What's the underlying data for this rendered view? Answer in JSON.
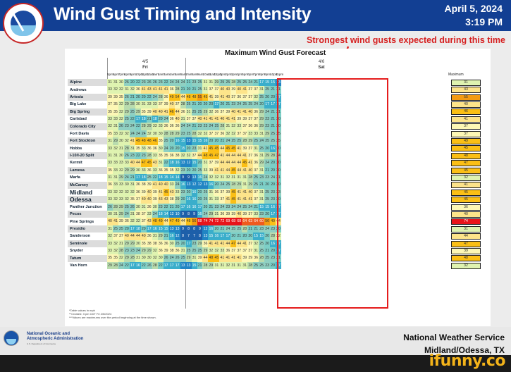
{
  "header": {
    "title": "Wind Gust Timing and Intensity",
    "date": "April 5, 2024",
    "time": "3:19 PM",
    "logo_text": "NATIONAL WEATHER SERVICE"
  },
  "annotation": {
    "text": "Strongest wind gusts expected during this time",
    "color": "#d61f1f"
  },
  "table": {
    "title": "Maximum Wind Gust Forecast",
    "day1": {
      "date": "4/5",
      "day": "Fri"
    },
    "day2": {
      "date": "4/6",
      "day": "Sat"
    },
    "max_header": "Maximum",
    "hours": [
      "5pm",
      "6pm",
      "7pm",
      "8pm",
      "9pm",
      "10pm",
      "11pm",
      "12am",
      "1am",
      "2am",
      "3am",
      "4am",
      "5am",
      "6am",
      "7am",
      "8am",
      "9am",
      "10am",
      "11am",
      "12pm",
      "1pm",
      "2pm",
      "3pm",
      "4pm",
      "5pm",
      "6pm",
      "7pm",
      "8pm",
      "9pm",
      "10pm",
      "11pm"
    ],
    "highlight_hours": [
      "9am",
      "6pm"
    ],
    "rows": [
      {
        "name": "Alpine",
        "values": [
          31,
          31,
          30,
          26,
          20,
          22,
          23,
          26,
          26,
          23,
          22,
          24,
          24,
          24,
          21,
          23,
          25,
          31,
          31,
          29,
          25,
          25,
          28,
          25,
          25,
          24,
          21,
          17,
          15,
          15,
          13
        ],
        "max": 31
      },
      {
        "name": "Andrews",
        "values": [
          33,
          32,
          32,
          31,
          32,
          36,
          41,
          43,
          41,
          41,
          41,
          36,
          28,
          21,
          20,
          21,
          25,
          31,
          37,
          37,
          40,
          40,
          39,
          40,
          41,
          37,
          37,
          31,
          25,
          21,
          21
        ],
        "max": 43
      },
      {
        "name": "Artesia",
        "values": [
          39,
          39,
          35,
          26,
          21,
          20,
          20,
          22,
          24,
          28,
          36,
          49,
          54,
          44,
          48,
          48,
          55,
          45,
          41,
          39,
          41,
          40,
          37,
          36,
          37,
          37,
          32,
          25,
          20,
          20,
          17
        ],
        "max": 55
      },
      {
        "name": "Big Lake",
        "values": [
          37,
          35,
          32,
          29,
          28,
          30,
          31,
          33,
          33,
          37,
          39,
          40,
          37,
          28,
          25,
          21,
          20,
          20,
          20,
          17,
          20,
          21,
          23,
          24,
          25,
          25,
          24,
          20,
          17,
          17,
          17
        ],
        "max": 40
      },
      {
        "name": "Big Spring",
        "values": [
          35,
          35,
          32,
          29,
          25,
          29,
          35,
          39,
          40,
          40,
          41,
          46,
          44,
          36,
          31,
          25,
          25,
          29,
          32,
          36,
          37,
          39,
          40,
          41,
          41,
          40,
          36,
          29,
          24,
          21,
          21
        ],
        "max": 46
      },
      {
        "name": "Carlsbad",
        "values": [
          33,
          33,
          32,
          25,
          22,
          17,
          18,
          21,
          18,
          20,
          24,
          36,
          40,
          31,
          37,
          37,
          40,
          41,
          41,
          41,
          40,
          41,
          41,
          39,
          39,
          37,
          37,
          29,
          23,
          21,
          20
        ],
        "max": 41
      },
      {
        "name": "Colorado City",
        "values": [
          32,
          31,
          26,
          23,
          24,
          22,
          28,
          29,
          33,
          33,
          36,
          36,
          36,
          24,
          24,
          21,
          23,
          23,
          24,
          25,
          28,
          31,
          32,
          33,
          37,
          36,
          36,
          29,
          23,
          21,
          20
        ],
        "max": 37
      },
      {
        "name": "Fort Davis",
        "values": [
          35,
          33,
          32,
          32,
          24,
          24,
          24,
          32,
          30,
          30,
          28,
          28,
          29,
          23,
          25,
          28,
          32,
          32,
          37,
          37,
          36,
          32,
          32,
          37,
          37,
          33,
          33,
          31,
          29,
          25,
          25
        ],
        "max": 37
      },
      {
        "name": "Fort Stockton",
        "values": [
          31,
          29,
          30,
          32,
          41,
          49,
          48,
          48,
          46,
          35,
          25,
          20,
          16,
          15,
          13,
          15,
          15,
          16,
          20,
          20,
          21,
          24,
          25,
          25,
          28,
          29,
          25,
          24,
          25,
          25,
          25
        ],
        "max": 49
      },
      {
        "name": "Hobbs",
        "values": [
          33,
          32,
          31,
          28,
          31,
          35,
          33,
          36,
          36,
          30,
          24,
          20,
          20,
          15,
          20,
          23,
          31,
          41,
          45,
          45,
          44,
          45,
          45,
          41,
          39,
          37,
          31,
          25,
          20,
          16,
          20
        ],
        "max": 45
      },
      {
        "name": "I-10/I-20 Split",
        "values": [
          31,
          31,
          30,
          26,
          23,
          22,
          23,
          28,
          33,
          35,
          35,
          36,
          38,
          32,
          32,
          37,
          44,
          48,
          45,
          47,
          41,
          44,
          44,
          44,
          41,
          37,
          36,
          31,
          29,
          28,
          24
        ],
        "max": 48
      },
      {
        "name": "Kermit",
        "values": [
          33,
          33,
          33,
          33,
          40,
          44,
          47,
          45,
          43,
          31,
          22,
          18,
          16,
          13,
          12,
          15,
          20,
          31,
          37,
          39,
          44,
          44,
          44,
          44,
          45,
          41,
          36,
          29,
          24,
          20,
          20
        ],
        "max": 47
      },
      {
        "name": "Lamesa",
        "values": [
          35,
          33,
          32,
          29,
          29,
          30,
          33,
          36,
          33,
          36,
          35,
          35,
          32,
          23,
          20,
          20,
          25,
          33,
          39,
          41,
          41,
          44,
          45,
          44,
          41,
          40,
          37,
          31,
          21,
          20,
          20
        ],
        "max": 45
      },
      {
        "name": "Marfa",
        "values": [
          31,
          31,
          29,
          24,
          21,
          17,
          18,
          25,
          22,
          18,
          15,
          14,
          14,
          9,
          9,
          13,
          16,
          24,
          32,
          32,
          31,
          32,
          31,
          31,
          31,
          28,
          25,
          23,
          23,
          24,
          21
        ],
        "max": 32
      },
      {
        "name": "McCamey",
        "values": [
          36,
          33,
          33,
          30,
          31,
          36,
          38,
          39,
          41,
          40,
          40,
          33,
          24,
          16,
          13,
          12,
          12,
          13,
          16,
          20,
          24,
          25,
          28,
          29,
          31,
          29,
          25,
          21,
          20,
          20,
          20
        ],
        "max": 41
      },
      {
        "name": "Midland",
        "values": [
          33,
          32,
          32,
          32,
          32,
          36,
          39,
          40,
          39,
          41,
          45,
          43,
          33,
          23,
          20,
          16,
          20,
          25,
          31,
          36,
          37,
          39,
          45,
          41,
          41,
          40,
          37,
          31,
          25,
          23,
          23
        ],
        "max": 45,
        "big": true
      },
      {
        "name": "Odessa",
        "values": [
          33,
          32,
          33,
          32,
          35,
          37,
          40,
          40,
          39,
          43,
          43,
          38,
          29,
          20,
          16,
          16,
          20,
          25,
          31,
          33,
          37,
          41,
          45,
          41,
          41,
          41,
          37,
          31,
          25,
          23,
          20
        ],
        "max": 45,
        "big": true
      },
      {
        "name": "Panther Junction",
        "values": [
          26,
          28,
          29,
          25,
          26,
          30,
          31,
          36,
          30,
          23,
          22,
          21,
          20,
          17,
          16,
          16,
          17,
          20,
          21,
          23,
          24,
          23,
          24,
          24,
          25,
          24,
          21,
          15,
          15,
          16,
          17
        ],
        "max": 36
      },
      {
        "name": "Pecos",
        "values": [
          30,
          31,
          29,
          24,
          31,
          38,
          37,
          33,
          24,
          18,
          14,
          12,
          10,
          9,
          8,
          9,
          16,
          24,
          29,
          31,
          36,
          39,
          39,
          40,
          39,
          37,
          33,
          23,
          20,
          17,
          17
        ],
        "max": 40
      },
      {
        "name": "Pine Springs",
        "values": [
          40,
          41,
          39,
          36,
          32,
          32,
          37,
          43,
          48,
          49,
          44,
          47,
          49,
          44,
          48,
          56,
          68,
          74,
          74,
          72,
          72,
          69,
          68,
          68,
          64,
          63,
          64,
          60,
          56,
          49,
          44
        ],
        "max": 74
      },
      {
        "name": "Presidio",
        "values": [
          31,
          25,
          25,
          20,
          17,
          18,
          20,
          17,
          16,
          15,
          15,
          13,
          13,
          9,
          8,
          8,
          9,
          12,
          16,
          20,
          21,
          24,
          25,
          25,
          28,
          21,
          21,
          23,
          24,
          23,
          20
        ],
        "max": 31
      },
      {
        "name": "Sanderson",
        "values": [
          32,
          37,
          37,
          40,
          44,
          44,
          40,
          36,
          31,
          29,
          21,
          16,
          12,
          8,
          7,
          7,
          8,
          13,
          15,
          16,
          17,
          17,
          20,
          21,
          20,
          20,
          15,
          15,
          20,
          28,
          32
        ],
        "max": 44
      },
      {
        "name": "Seminole",
        "values": [
          33,
          32,
          31,
          29,
          29,
          30,
          35,
          38,
          38,
          36,
          36,
          30,
          25,
          20,
          17,
          23,
          29,
          36,
          41,
          41,
          41,
          44,
          47,
          44,
          41,
          37,
          32,
          25,
          20,
          16,
          17
        ],
        "max": 47
      },
      {
        "name": "Snyder",
        "values": [
          33,
          32,
          28,
          23,
          23,
          24,
          29,
          29,
          32,
          36,
          39,
          38,
          36,
          31,
          25,
          25,
          25,
          29,
          32,
          32,
          33,
          36,
          37,
          37,
          37,
          37,
          31,
          25,
          21,
          20,
          17
        ],
        "max": 39
      },
      {
        "name": "Tatum",
        "values": [
          35,
          35,
          32,
          29,
          28,
          31,
          30,
          30,
          32,
          30,
          26,
          24,
          26,
          25,
          29,
          31,
          39,
          44,
          48,
          45,
          41,
          41,
          41,
          41,
          39,
          39,
          36,
          28,
          25,
          23,
          21
        ],
        "max": 48
      },
      {
        "name": "Van Horn",
        "values": [
          29,
          28,
          24,
          22,
          17,
          16,
          22,
          26,
          28,
          22,
          17,
          17,
          17,
          13,
          13,
          15,
          21,
          28,
          29,
          31,
          31,
          32,
          31,
          31,
          31,
          28,
          25,
          25,
          23,
          20,
          17
        ],
        "max": 32
      }
    ],
    "notes": [
      "*Table values in mph",
      "**Created: 3 pm CDT Fri 4/5/2024",
      "***Values are maximums over the period beginning at the time shown."
    ]
  },
  "footer": {
    "noaa_line1": "National Oceanic and",
    "noaa_line2": "Atmospheric Administration",
    "noaa_line3": "U.S. Department of Commerce",
    "nws_line1": "National Weather Service",
    "nws_line2": "Midland/Odessa, TX"
  },
  "watermark": "ifunny.co",
  "colors": {
    "header_bg": "#123f93",
    "highlight_box": "#e51c1c"
  }
}
